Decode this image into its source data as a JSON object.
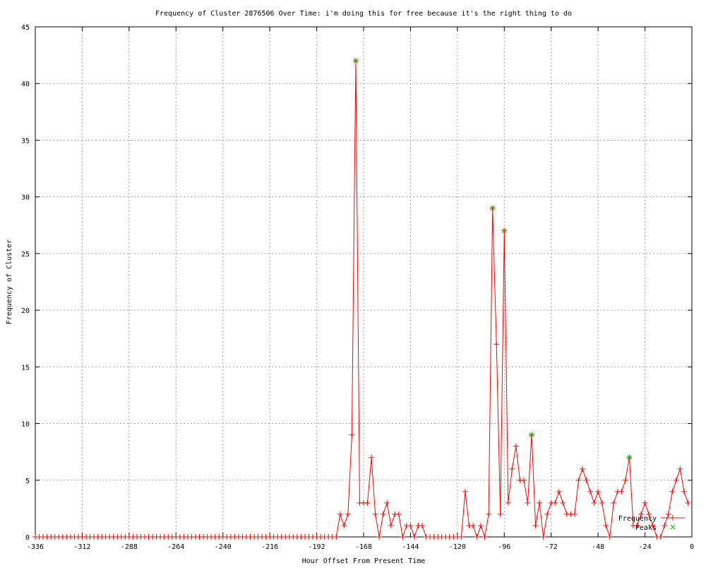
{
  "chart_data": {
    "type": "line",
    "title": "Frequency of Cluster 2876506 Over Time: i'm doing this for free because it's the right thing to do",
    "xlabel": "Hour Offset From Present Time",
    "ylabel": "Frequency of Cluster",
    "xlim": [
      -336,
      0
    ],
    "ylim": [
      0,
      45
    ],
    "xticks": [
      -336,
      -312,
      -288,
      -264,
      -240,
      -216,
      -192,
      -168,
      -144,
      -120,
      -96,
      -72,
      -48,
      -24,
      0
    ],
    "yticks": [
      0,
      5,
      10,
      15,
      20,
      25,
      30,
      35,
      40,
      45
    ],
    "grid": true,
    "legend_placement": "bottom-right",
    "colors": {
      "frequency": "#ff0000",
      "peaks": "#00c000"
    },
    "series": [
      {
        "name": "Frequency",
        "style": "linespoints",
        "points": [
          [
            -336,
            0
          ],
          [
            -334,
            0
          ],
          [
            -332,
            0
          ],
          [
            -330,
            0
          ],
          [
            -328,
            0
          ],
          [
            -326,
            0
          ],
          [
            -324,
            0
          ],
          [
            -322,
            0
          ],
          [
            -320,
            0
          ],
          [
            -318,
            0
          ],
          [
            -316,
            0
          ],
          [
            -314,
            0
          ],
          [
            -312,
            0
          ],
          [
            -310,
            0
          ],
          [
            -308,
            0
          ],
          [
            -306,
            0
          ],
          [
            -304,
            0
          ],
          [
            -302,
            0
          ],
          [
            -300,
            0
          ],
          [
            -298,
            0
          ],
          [
            -296,
            0
          ],
          [
            -294,
            0
          ],
          [
            -292,
            0
          ],
          [
            -290,
            0
          ],
          [
            -288,
            0
          ],
          [
            -286,
            0
          ],
          [
            -284,
            0
          ],
          [
            -282,
            0
          ],
          [
            -280,
            0
          ],
          [
            -278,
            0
          ],
          [
            -276,
            0
          ],
          [
            -274,
            0
          ],
          [
            -272,
            0
          ],
          [
            -270,
            0
          ],
          [
            -268,
            0
          ],
          [
            -266,
            0
          ],
          [
            -264,
            0
          ],
          [
            -262,
            0
          ],
          [
            -260,
            0
          ],
          [
            -258,
            0
          ],
          [
            -256,
            0
          ],
          [
            -254,
            0
          ],
          [
            -252,
            0
          ],
          [
            -250,
            0
          ],
          [
            -248,
            0
          ],
          [
            -246,
            0
          ],
          [
            -244,
            0
          ],
          [
            -242,
            0
          ],
          [
            -240,
            0
          ],
          [
            -238,
            0
          ],
          [
            -236,
            0
          ],
          [
            -234,
            0
          ],
          [
            -232,
            0
          ],
          [
            -230,
            0
          ],
          [
            -228,
            0
          ],
          [
            -226,
            0
          ],
          [
            -224,
            0
          ],
          [
            -222,
            0
          ],
          [
            -220,
            0
          ],
          [
            -218,
            0
          ],
          [
            -216,
            0
          ],
          [
            -214,
            0
          ],
          [
            -212,
            0
          ],
          [
            -210,
            0
          ],
          [
            -208,
            0
          ],
          [
            -206,
            0
          ],
          [
            -204,
            0
          ],
          [
            -202,
            0
          ],
          [
            -200,
            0
          ],
          [
            -198,
            0
          ],
          [
            -196,
            0
          ],
          [
            -194,
            0
          ],
          [
            -192,
            0
          ],
          [
            -190,
            0
          ],
          [
            -188,
            0
          ],
          [
            -186,
            0
          ],
          [
            -184,
            0
          ],
          [
            -182,
            0
          ],
          [
            -180,
            2
          ],
          [
            -178,
            1
          ],
          [
            -176,
            2
          ],
          [
            -174,
            9
          ],
          [
            -172,
            42
          ],
          [
            -170,
            3
          ],
          [
            -168,
            3
          ],
          [
            -166,
            3
          ],
          [
            -164,
            7
          ],
          [
            -162,
            2
          ],
          [
            -160,
            0
          ],
          [
            -158,
            2
          ],
          [
            -156,
            3
          ],
          [
            -154,
            1
          ],
          [
            -152,
            2
          ],
          [
            -150,
            2
          ],
          [
            -148,
            0
          ],
          [
            -146,
            1
          ],
          [
            -144,
            1
          ],
          [
            -142,
            0
          ],
          [
            -140,
            1
          ],
          [
            -138,
            1
          ],
          [
            -136,
            0
          ],
          [
            -134,
            0
          ],
          [
            -132,
            0
          ],
          [
            -130,
            0
          ],
          [
            -128,
            0
          ],
          [
            -126,
            0
          ],
          [
            -124,
            0
          ],
          [
            -122,
            0
          ],
          [
            -120,
            0
          ],
          [
            -118,
            0
          ],
          [
            -116,
            4
          ],
          [
            -114,
            1
          ],
          [
            -112,
            1
          ],
          [
            -110,
            0
          ],
          [
            -108,
            1
          ],
          [
            -106,
            0
          ],
          [
            -104,
            2
          ],
          [
            -102,
            29
          ],
          [
            -100,
            17
          ],
          [
            -98,
            2
          ],
          [
            -96,
            27
          ],
          [
            -94,
            3
          ],
          [
            -92,
            6
          ],
          [
            -90,
            8
          ],
          [
            -88,
            5
          ],
          [
            -86,
            5
          ],
          [
            -84,
            3
          ],
          [
            -82,
            9
          ],
          [
            -80,
            1
          ],
          [
            -78,
            3
          ],
          [
            -76,
            0
          ],
          [
            -74,
            2
          ],
          [
            -72,
            3
          ],
          [
            -70,
            3
          ],
          [
            -68,
            4
          ],
          [
            -66,
            3
          ],
          [
            -64,
            2
          ],
          [
            -62,
            2
          ],
          [
            -60,
            2
          ],
          [
            -58,
            5
          ],
          [
            -56,
            6
          ],
          [
            -54,
            5
          ],
          [
            -52,
            4
          ],
          [
            -50,
            3
          ],
          [
            -48,
            4
          ],
          [
            -46,
            3
          ],
          [
            -44,
            1
          ],
          [
            -42,
            0
          ],
          [
            -40,
            3
          ],
          [
            -38,
            4
          ],
          [
            -36,
            4
          ],
          [
            -34,
            5
          ],
          [
            -32,
            7
          ],
          [
            -30,
            1
          ],
          [
            -28,
            1
          ],
          [
            -26,
            2
          ],
          [
            -24,
            3
          ],
          [
            -22,
            2
          ],
          [
            -20,
            1
          ],
          [
            -18,
            0
          ],
          [
            -16,
            0
          ],
          [
            -14,
            1
          ],
          [
            -12,
            2
          ],
          [
            -10,
            4
          ],
          [
            -8,
            5
          ],
          [
            -6,
            6
          ],
          [
            -4,
            4
          ],
          [
            -2,
            3
          ]
        ]
      },
      {
        "name": "Peaks",
        "style": "points",
        "points": [
          [
            -172,
            42
          ],
          [
            -102,
            29
          ],
          [
            -96,
            27
          ],
          [
            -82,
            9
          ],
          [
            -32,
            7
          ]
        ]
      }
    ]
  }
}
